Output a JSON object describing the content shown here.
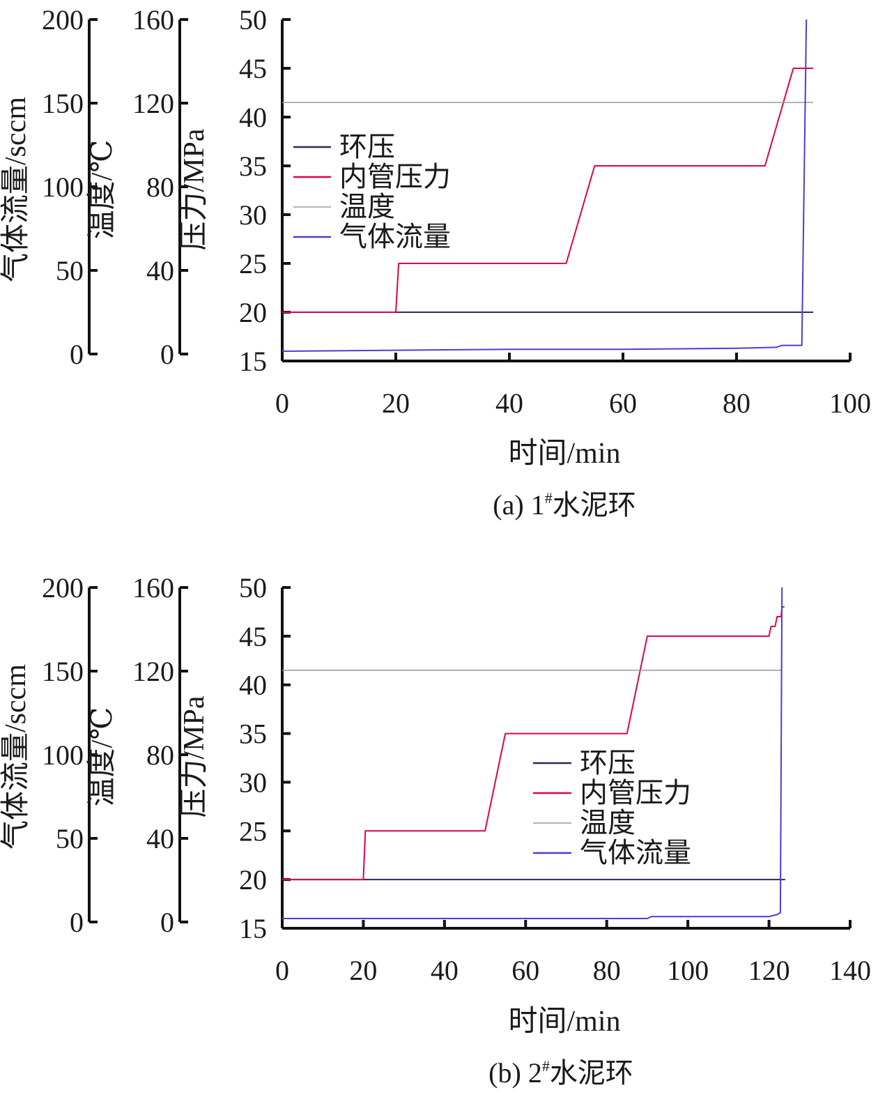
{
  "colors": {
    "annular": "#2a2a5a",
    "inner": "#e0004a",
    "temp": "#9a9a9a",
    "gas": "#4b3cd6",
    "axis": "#111111"
  },
  "chart_data": [
    {
      "type": "line",
      "caption": {
        "prefix": "(a) 1",
        "sup": "#",
        "suffix": "水泥环"
      },
      "xlabel": "时间/min",
      "xlim": [
        0,
        100
      ],
      "xticks": [
        "0",
        "20",
        "40",
        "60",
        "80",
        "100"
      ],
      "axes": {
        "gas": {
          "label": "气体流量/sccm",
          "ylim": [
            0,
            200
          ],
          "ticks": [
            "0",
            "50",
            "100",
            "150",
            "200"
          ]
        },
        "temp": {
          "label": "温度/℃",
          "ylim": [
            0,
            160
          ],
          "ticks": [
            "0",
            "40",
            "80",
            "120",
            "160"
          ]
        },
        "pressure": {
          "label": "压力/MPa",
          "ylim": [
            15,
            50
          ],
          "ticks": [
            "15",
            "20",
            "25",
            "30",
            "35",
            "40",
            "45",
            "50"
          ]
        }
      },
      "legend": {
        "position": "upper-left",
        "items": [
          "环压",
          "内管压力",
          "温度",
          "气体流量"
        ]
      },
      "series": [
        {
          "name": "环压",
          "axis": "pressure",
          "color": "annular",
          "points": [
            [
              0,
              20
            ],
            [
              93.5,
              20
            ]
          ]
        },
        {
          "name": "内管压力",
          "axis": "pressure",
          "color": "inner",
          "points": [
            [
              0,
              20
            ],
            [
              20,
              20
            ],
            [
              20.5,
              25
            ],
            [
              50,
              25
            ],
            [
              55,
              35
            ],
            [
              85,
              35
            ],
            [
              90,
              45
            ],
            [
              93.5,
              45
            ]
          ]
        },
        {
          "name": "温度",
          "axis": "pressure",
          "color": "temp",
          "points": [
            [
              0,
              41.5
            ],
            [
              93.5,
              41.5
            ]
          ]
        },
        {
          "name": "气体流量",
          "axis": "pressure",
          "color": "gas",
          "points": [
            [
              0,
              16
            ],
            [
              20,
              16.1
            ],
            [
              40,
              16.2
            ],
            [
              60,
              16.2
            ],
            [
              80,
              16.3
            ],
            [
              87,
              16.4
            ],
            [
              88,
              16.6
            ],
            [
              91.5,
              16.6
            ],
            [
              92.3,
              50
            ]
          ]
        }
      ]
    },
    {
      "type": "line",
      "caption": {
        "prefix": "(b) 2",
        "sup": "#",
        "suffix": "水泥环"
      },
      "xlabel": "时间/min",
      "xlim": [
        0,
        140
      ],
      "xticks": [
        "0",
        "20",
        "40",
        "60",
        "80",
        "100",
        "120",
        "140"
      ],
      "axes": {
        "gas": {
          "label": "气体流量/sccm",
          "ylim": [
            0,
            200
          ],
          "ticks": [
            "0",
            "50",
            "100",
            "150",
            "200"
          ]
        },
        "temp": {
          "label": "温度/℃",
          "ylim": [
            0,
            160
          ],
          "ticks": [
            "0",
            "40",
            "80",
            "120",
            "160"
          ]
        },
        "pressure": {
          "label": "压力/MPa",
          "ylim": [
            15,
            50
          ],
          "ticks": [
            "15",
            "20",
            "25",
            "30",
            "35",
            "40",
            "45",
            "50"
          ]
        }
      },
      "legend": {
        "position": "center-right",
        "items": [
          "环压",
          "内管压力",
          "温度",
          "气体流量"
        ]
      },
      "series": [
        {
          "name": "环压",
          "axis": "pressure",
          "color": "annular",
          "points": [
            [
              0,
              20
            ],
            [
              124,
              20
            ]
          ]
        },
        {
          "name": "内管压力",
          "axis": "pressure",
          "color": "inner",
          "points": [
            [
              0,
              20
            ],
            [
              20,
              20
            ],
            [
              20.5,
              25
            ],
            [
              50,
              25
            ],
            [
              55,
              35
            ],
            [
              85,
              35
            ],
            [
              90,
              45
            ],
            [
              120,
              45
            ],
            [
              120.5,
              46
            ],
            [
              121.5,
              46
            ],
            [
              122,
              47
            ],
            [
              123,
              47
            ],
            [
              123.2,
              48
            ],
            [
              123.8,
              48
            ]
          ]
        },
        {
          "name": "温度",
          "axis": "pressure",
          "color": "temp",
          "points": [
            [
              0,
              41.5
            ],
            [
              123,
              41.5
            ]
          ]
        },
        {
          "name": "气体流量",
          "axis": "pressure",
          "color": "gas",
          "points": [
            [
              0,
              16
            ],
            [
              90,
              16
            ],
            [
              91,
              16.2
            ],
            [
              120,
              16.2
            ],
            [
              122,
              16.4
            ],
            [
              122.8,
              16.6
            ],
            [
              123.2,
              50
            ]
          ]
        }
      ]
    }
  ]
}
